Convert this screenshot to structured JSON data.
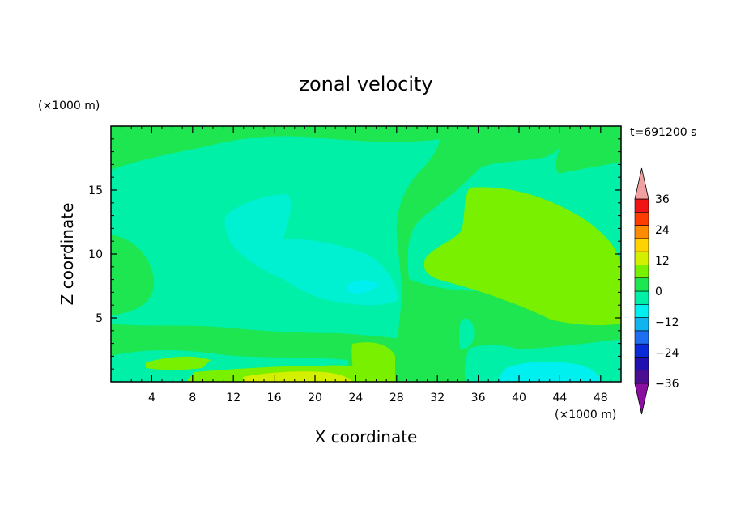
{
  "chart_data": {
    "type": "heatmap",
    "title": "zonal velocity",
    "xlabel": "X coordinate",
    "ylabel": "Z coordinate",
    "x_unit": "(×1000 m)",
    "y_unit": "(×1000 m)",
    "time_label": "t=691200 s",
    "xlim": [
      0,
      50
    ],
    "ylim": [
      0,
      20
    ],
    "x_ticks": [
      4,
      8,
      12,
      16,
      20,
      24,
      28,
      32,
      36,
      40,
      44,
      48
    ],
    "y_ticks": [
      5,
      10,
      15
    ],
    "colorbar": {
      "levels": [
        -36,
        -30,
        -24,
        -18,
        -12,
        -6,
        0,
        6,
        12,
        18,
        24,
        30,
        36
      ],
      "tick_labels": [
        {
          "value": 36,
          "text": "36"
        },
        {
          "value": 24,
          "text": "24"
        },
        {
          "value": 12,
          "text": "12"
        },
        {
          "value": 0,
          "text": "0"
        },
        {
          "value": -12,
          "text": "−12"
        },
        {
          "value": -24,
          "text": "−24"
        },
        {
          "value": -36,
          "text": "−36"
        }
      ],
      "colors": [
        "#4b0e91",
        "#2010b0",
        "#0a2ad8",
        "#1e6ef0",
        "#12b4f0",
        "#00f0f0",
        "#00f0a8",
        "#1ee650",
        "#78f000",
        "#d2f000",
        "#ffd200",
        "#ff8c00",
        "#ff3c00",
        "#f01414"
      ],
      "under_color": "#8a0fa0",
      "over_color": "#f0a0a0"
    },
    "field_levels": {
      "background": 0,
      "regions": [
        {
          "name": "top-left-band",
          "value": 2
        },
        {
          "name": "top-center-plume",
          "value": 2
        },
        {
          "name": "left-edge-blob",
          "value": 2
        },
        {
          "name": "upper-right-core",
          "value": 8
        },
        {
          "name": "center-slow-cell",
          "value": -4
        },
        {
          "name": "center-slow-core",
          "value": -8
        },
        {
          "name": "mid-low-fast-layer",
          "value": 2
        },
        {
          "name": "bottom-fast-layer",
          "value": 8
        },
        {
          "name": "bottom-peak",
          "value": 12
        },
        {
          "name": "bottom-right-slow",
          "value": -6
        },
        {
          "name": "bottom-right-core",
          "value": -10
        }
      ]
    }
  }
}
